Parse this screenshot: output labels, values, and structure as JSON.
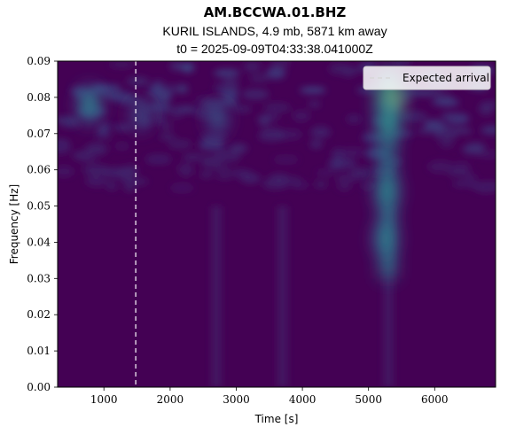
{
  "chart_data": {
    "type": "heatmap",
    "title": "AM.BCCWA.01.BHZ",
    "subtitle_lines": [
      "KURIL ISLANDS, 4.9 mb, 5871 km away",
      "t0 = 2025-09-09T04:33:38.041000Z"
    ],
    "xlabel": "Time [s]",
    "ylabel": "Frequency [Hz]",
    "xlim": [
      300,
      6920
    ],
    "ylim": [
      0,
      0.09
    ],
    "x_ticks": [
      1000,
      2000,
      3000,
      4000,
      5000,
      6000
    ],
    "x_tick_labels": [
      "1000",
      "2000",
      "3000",
      "4000",
      "5000",
      "6000"
    ],
    "y_ticks": [
      0,
      0.01,
      0.02,
      0.03,
      0.04,
      0.05,
      0.06,
      0.07,
      0.08,
      0.09
    ],
    "y_tick_labels": [
      "0.00",
      "0.01",
      "0.02",
      "0.03",
      "0.04",
      "0.05",
      "0.06",
      "0.07",
      "0.08",
      "0.09"
    ],
    "colormap": "viridis",
    "expected_arrival": 1480,
    "legend": {
      "entries": [
        "Expected arrival"
      ],
      "placement": "top-right"
    },
    "energy_blobs": [
      {
        "t": 5320,
        "f": 0.079,
        "amplitude": 1.0
      },
      {
        "t": 5300,
        "f": 0.073,
        "amplitude": 0.7
      },
      {
        "t": 5280,
        "f": 0.054,
        "amplitude": 0.6
      },
      {
        "t": 5260,
        "f": 0.041,
        "amplitude": 0.55
      },
      {
        "t": 780,
        "f": 0.078,
        "amplitude": 0.5
      },
      {
        "t": 2720,
        "f": 0.074,
        "amplitude": 0.3
      },
      {
        "t": 1550,
        "f": 0.075,
        "amplitude": 0.25
      }
    ]
  },
  "colors": {
    "background": "#440154",
    "arrival_line": "#ffffff",
    "text": "#000000"
  }
}
